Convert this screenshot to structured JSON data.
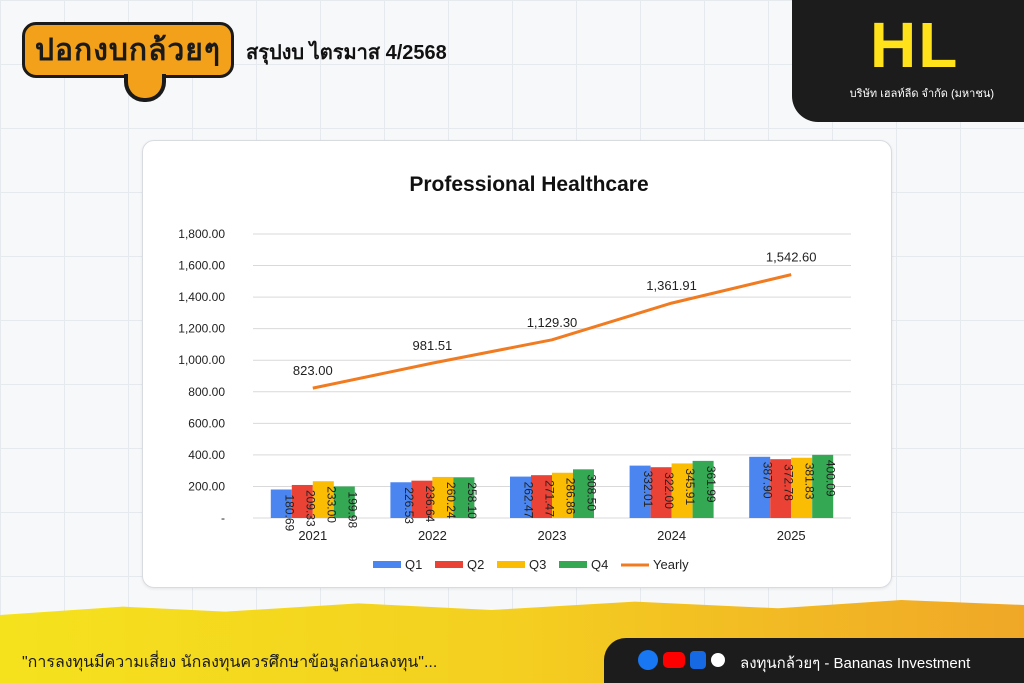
{
  "header": {
    "logo_text": "ปอกงบกล้วยๆ",
    "page_title": "สรุปงบ ไตรมาส 4/2568",
    "corner_mark": "HL",
    "company_name": "บริษัท เฮลท์ลีด จำกัด (มหาชน)"
  },
  "footer": {
    "disclaimer": "\"การลงทุนมีความเสี่ยง นักลงทุนควรศึกษาข้อมูลก่อนลงทุน\"...",
    "brand_text": "ลงทุนกล้วยๆ - Bananas Investment",
    "icons": [
      "facebook-icon",
      "youtube-icon",
      "blockdit-icon",
      "tiktok-icon"
    ]
  },
  "colors": {
    "q1": "#4b86f0",
    "q2": "#ea4335",
    "q3": "#fbbc04",
    "q4": "#34a853",
    "yearly": "#f07b20",
    "accent": "#f3a01b"
  },
  "chart_data": {
    "type": "bar",
    "title": "Professional Healthcare",
    "categories": [
      "2021",
      "2022",
      "2023",
      "2024",
      "2025"
    ],
    "ylim": [
      0,
      1800
    ],
    "yticks": [
      "-",
      "200.00",
      "400.00",
      "600.00",
      "800.00",
      "1,000.00",
      "1,200.00",
      "1,400.00",
      "1,600.00",
      "1,800.00"
    ],
    "grid": true,
    "legend_position": "bottom",
    "series": [
      {
        "name": "Q1",
        "type": "bar",
        "values": [
          180.69,
          226.53,
          262.47,
          332.01,
          387.9
        ],
        "labels": [
          "180.69",
          "226.53",
          "262.47",
          "332.01",
          "387.90"
        ]
      },
      {
        "name": "Q2",
        "type": "bar",
        "values": [
          209.33,
          236.64,
          271.47,
          322.0,
          372.78
        ],
        "labels": [
          "209.33",
          "236.64",
          "271.47",
          "322.00",
          "372.78"
        ]
      },
      {
        "name": "Q3",
        "type": "bar",
        "values": [
          233.0,
          260.24,
          286.86,
          345.91,
          381.83
        ],
        "labels": [
          "233.00",
          "260.24",
          "286.86",
          "345.91",
          "381.83"
        ]
      },
      {
        "name": "Q4",
        "type": "bar",
        "values": [
          199.98,
          258.1,
          308.5,
          361.99,
          400.09
        ],
        "labels": [
          "199.98",
          "258.10",
          "308.50",
          "361.99",
          "400.09"
        ]
      },
      {
        "name": "Yearly",
        "type": "line",
        "values": [
          823.0,
          981.51,
          1129.3,
          1361.91,
          1542.6
        ],
        "labels": [
          "823.00",
          "981.51",
          "1,129.30",
          "1,361.91",
          "1,542.60"
        ]
      }
    ]
  }
}
